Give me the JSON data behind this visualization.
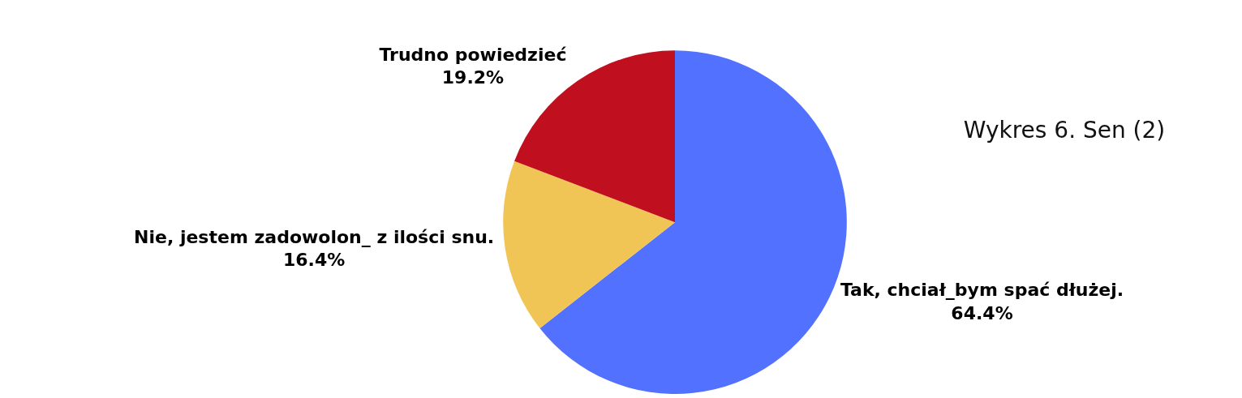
{
  "chart_data": {
    "type": "pie",
    "title": "Wykres 6. Sen (2)",
    "categories": [
      "Tak, chciał_bym spać dłużej.",
      "Nie, jestem zadowolon_ z ilości snu.",
      "Trudno powiedzieć"
    ],
    "values": [
      64.4,
      16.4,
      19.2
    ],
    "value_labels": [
      "64.4%",
      "16.4%",
      "19.2%"
    ],
    "colors": [
      "#5271ff",
      "#f1c555",
      "#c00f1e"
    ],
    "legend": false
  }
}
